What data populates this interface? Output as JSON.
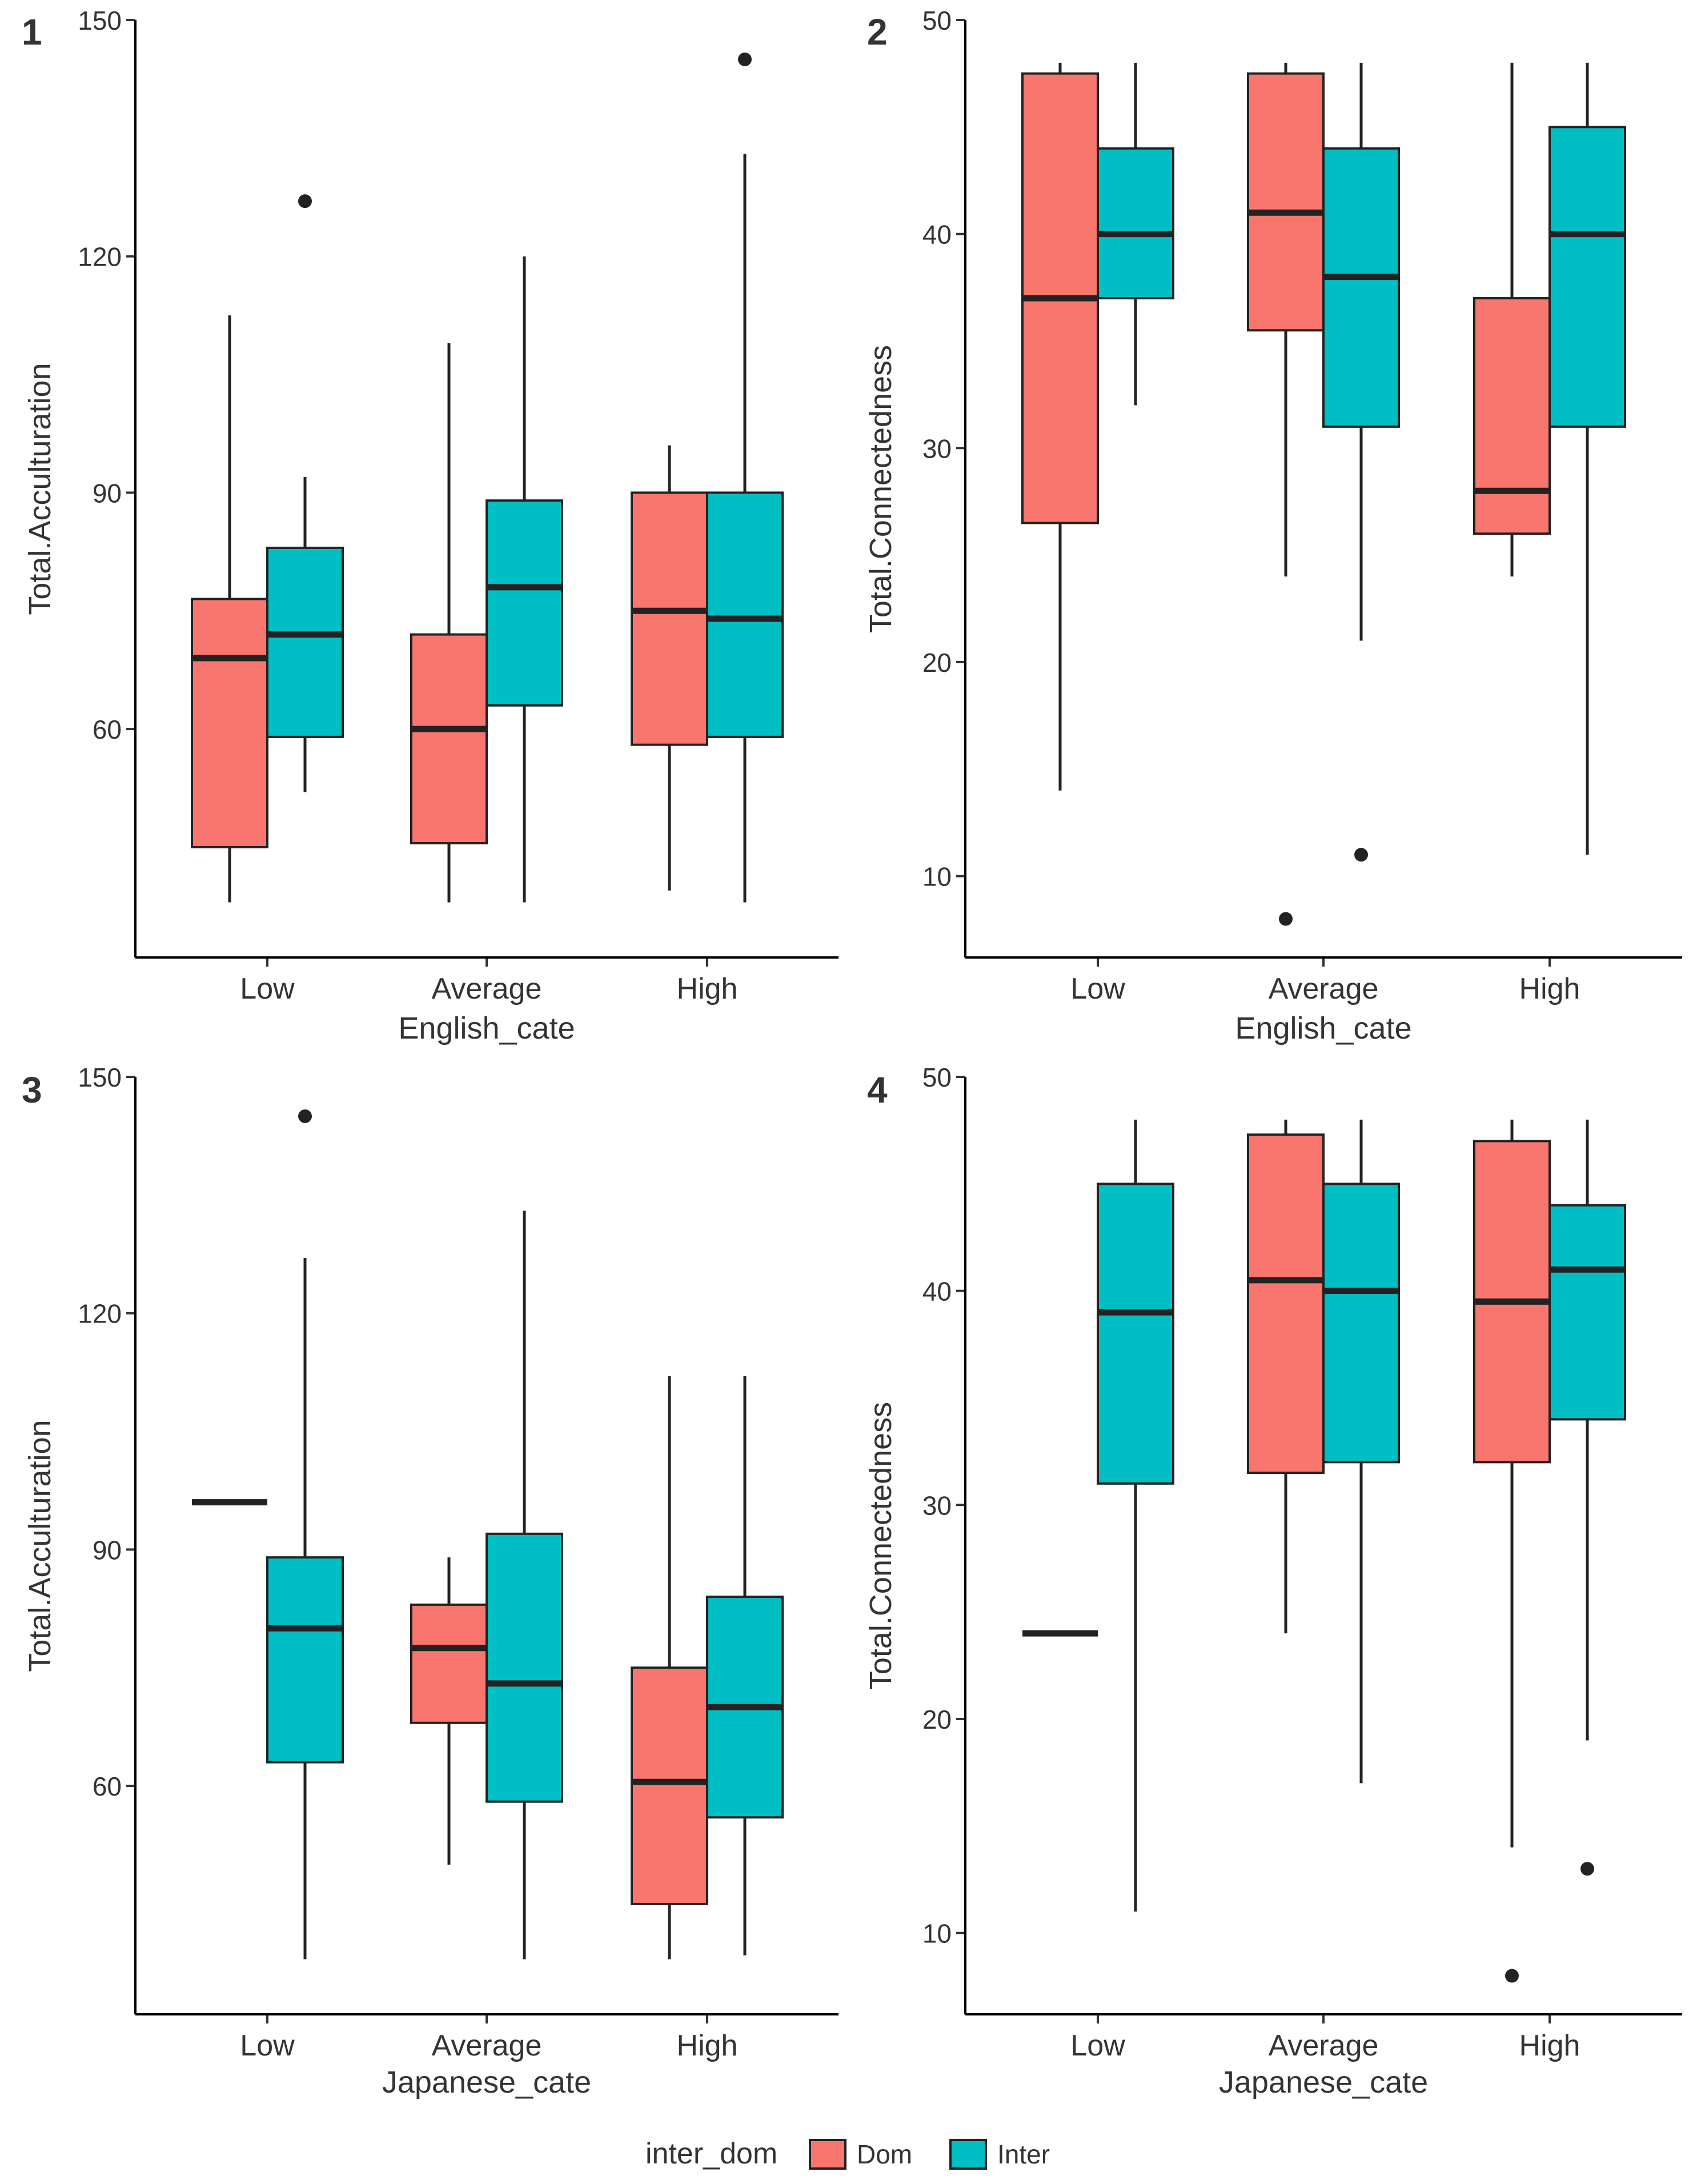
{
  "colors": {
    "Dom": "#F8766D",
    "Inter": "#00BFC4"
  },
  "legend": {
    "title": "inter_dom",
    "items": [
      {
        "key": "Dom",
        "label": "Dom"
      },
      {
        "key": "Inter",
        "label": "Inter"
      }
    ]
  },
  "chart_data": [
    {
      "type": "box",
      "panel_label": "1",
      "xlabel": "English_cate",
      "ylabel": "Total.Acculturation",
      "categories": [
        "Low",
        "Average",
        "High"
      ],
      "ylim": [
        31,
        150
      ],
      "yticks": [
        60,
        90,
        120,
        150
      ],
      "groups": [
        "Dom",
        "Inter"
      ],
      "boxes": {
        "Low": {
          "Dom": {
            "lower": 38,
            "q1": 45,
            "median": 69,
            "q3": 76.5,
            "upper": 112.5,
            "outliers": []
          },
          "Inter": {
            "lower": 52,
            "q1": 59,
            "median": 72,
            "q3": 83,
            "upper": 92,
            "outliers": [
              127
            ]
          }
        },
        "Average": {
          "Dom": {
            "lower": 38,
            "q1": 45.5,
            "median": 60,
            "q3": 72,
            "upper": 109,
            "outliers": []
          },
          "Inter": {
            "lower": 38,
            "q1": 63,
            "median": 78,
            "q3": 89,
            "upper": 120,
            "outliers": []
          }
        },
        "High": {
          "Dom": {
            "lower": 39.5,
            "q1": 58,
            "median": 75,
            "q3": 90,
            "upper": 96,
            "outliers": []
          },
          "Inter": {
            "lower": 38,
            "q1": 59,
            "median": 74,
            "q3": 90,
            "upper": 133,
            "outliers": [
              145
            ]
          }
        }
      }
    },
    {
      "type": "box",
      "panel_label": "2",
      "xlabel": "English_cate",
      "ylabel": "Total.Connectedness",
      "categories": [
        "Low",
        "Average",
        "High"
      ],
      "ylim": [
        6.2,
        50
      ],
      "yticks": [
        10,
        20,
        30,
        40,
        50
      ],
      "groups": [
        "Dom",
        "Inter"
      ],
      "boxes": {
        "Low": {
          "Dom": {
            "lower": 14,
            "q1": 26.5,
            "median": 37,
            "q3": 47.5,
            "upper": 48,
            "outliers": []
          },
          "Inter": {
            "lower": 32,
            "q1": 37,
            "median": 40,
            "q3": 44,
            "upper": 48,
            "outliers": []
          }
        },
        "Average": {
          "Dom": {
            "lower": 24,
            "q1": 35.5,
            "median": 41,
            "q3": 47.5,
            "upper": 48,
            "outliers": [
              8
            ]
          },
          "Inter": {
            "lower": 21,
            "q1": 31,
            "median": 38,
            "q3": 44,
            "upper": 48,
            "outliers": [
              11
            ]
          }
        },
        "High": {
          "Dom": {
            "lower": 24,
            "q1": 26,
            "median": 28,
            "q3": 37,
            "upper": 48,
            "outliers": []
          },
          "Inter": {
            "lower": 11,
            "q1": 31,
            "median": 40,
            "q3": 45,
            "upper": 48,
            "outliers": []
          }
        }
      }
    },
    {
      "type": "box",
      "panel_label": "3",
      "xlabel": "Japanese_cate",
      "ylabel": "Total.Acculturation",
      "categories": [
        "Low",
        "Average",
        "High"
      ],
      "ylim": [
        31,
        150
      ],
      "yticks": [
        60,
        90,
        120,
        150
      ],
      "groups": [
        "Dom",
        "Inter"
      ],
      "boxes": {
        "Low": {
          "Dom": {
            "lower": 96,
            "q1": 96,
            "median": 96,
            "q3": 96,
            "upper": 96,
            "outliers": []
          },
          "Inter": {
            "lower": 38,
            "q1": 63,
            "median": 80,
            "q3": 89,
            "upper": 127,
            "outliers": [
              145
            ]
          }
        },
        "Average": {
          "Dom": {
            "lower": 50,
            "q1": 68,
            "median": 77.5,
            "q3": 83,
            "upper": 89,
            "outliers": []
          },
          "Inter": {
            "lower": 38,
            "q1": 58,
            "median": 73,
            "q3": 92,
            "upper": 133,
            "outliers": []
          }
        },
        "High": {
          "Dom": {
            "lower": 38,
            "q1": 45,
            "median": 60.5,
            "q3": 75,
            "upper": 112,
            "outliers": []
          },
          "Inter": {
            "lower": 38.5,
            "q1": 56,
            "median": 70,
            "q3": 84,
            "upper": 112,
            "outliers": []
          }
        }
      }
    },
    {
      "type": "box",
      "panel_label": "4",
      "xlabel": "Japanese_cate",
      "ylabel": "Total.Connectedness",
      "categories": [
        "Low",
        "Average",
        "High"
      ],
      "ylim": [
        6.2,
        50
      ],
      "yticks": [
        10,
        20,
        30,
        40,
        50
      ],
      "groups": [
        "Dom",
        "Inter"
      ],
      "boxes": {
        "Low": {
          "Dom": {
            "lower": 24,
            "q1": 24,
            "median": 24,
            "q3": 24,
            "upper": 24,
            "outliers": []
          },
          "Inter": {
            "lower": 11,
            "q1": 31,
            "median": 39,
            "q3": 45,
            "upper": 48,
            "outliers": []
          }
        },
        "Average": {
          "Dom": {
            "lower": 24,
            "q1": 31.5,
            "median": 40.5,
            "q3": 47.3,
            "upper": 48,
            "outliers": []
          },
          "Inter": {
            "lower": 17,
            "q1": 32,
            "median": 40,
            "q3": 45,
            "upper": 48,
            "outliers": []
          }
        },
        "High": {
          "Dom": {
            "lower": 14,
            "q1": 32,
            "median": 39.5,
            "q3": 47,
            "upper": 48,
            "outliers": [
              8
            ]
          },
          "Inter": {
            "lower": 19,
            "q1": 34,
            "median": 41,
            "q3": 44,
            "upper": 48,
            "outliers": [
              13
            ]
          }
        }
      }
    }
  ]
}
